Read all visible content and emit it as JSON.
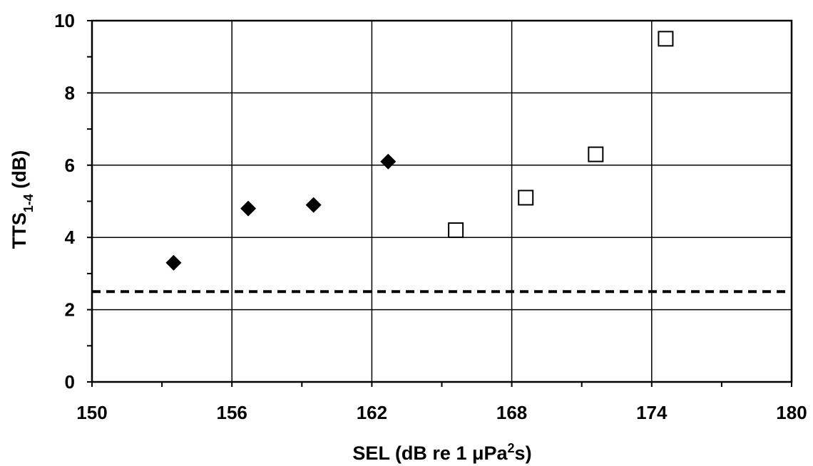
{
  "chart_data": {
    "type": "scatter",
    "xlabel": {
      "main": "SEL (dB re 1 ",
      "unit": "μPa",
      "sup": "2",
      "tail": "s)"
    },
    "ylabel": {
      "main": "TTS",
      "sub": "1-4",
      "tail": " (dB)"
    },
    "xlim": [
      150,
      180
    ],
    "ylim": [
      0,
      10
    ],
    "x_ticks": [
      150,
      156,
      162,
      168,
      174,
      180
    ],
    "y_ticks": [
      0,
      2,
      4,
      6,
      8,
      10
    ],
    "x_minor_step": 3,
    "y_minor_step": 1,
    "grid": true,
    "reference_line": {
      "y": 2.5,
      "style": "dashed"
    },
    "series": [
      {
        "marker": "filled-diamond",
        "color": "#000000",
        "points": [
          [
            153.5,
            3.3
          ],
          [
            156.7,
            4.8
          ],
          [
            159.5,
            4.9
          ],
          [
            162.7,
            6.1
          ]
        ]
      },
      {
        "marker": "open-square",
        "color": "#000000",
        "points": [
          [
            165.6,
            4.2
          ],
          [
            168.6,
            5.1
          ],
          [
            171.6,
            6.3
          ],
          [
            174.6,
            9.5
          ]
        ]
      }
    ]
  }
}
